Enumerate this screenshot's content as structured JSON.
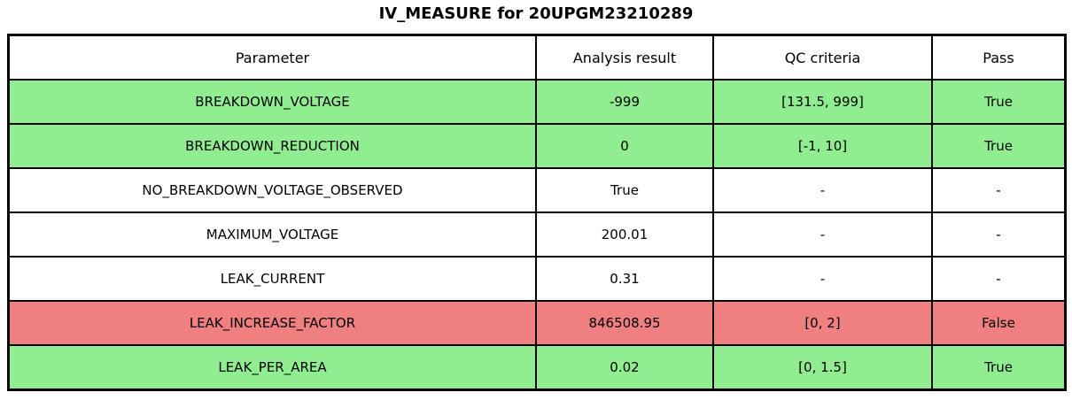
{
  "colors": {
    "pass": "#90ee90",
    "fail": "#f08080",
    "neutral": "#ffffff",
    "border": "#000000",
    "text": "#000000"
  },
  "chart_data": {
    "type": "table",
    "title": "IV_MEASURE for 20UPGM23210289",
    "columns": [
      "Parameter",
      "Analysis result",
      "QC criteria",
      "Pass"
    ],
    "rows": [
      [
        "BREAKDOWN_VOLTAGE",
        "-999",
        "[131.5, 999]",
        "True"
      ],
      [
        "BREAKDOWN_REDUCTION",
        "0",
        "[-1, 10]",
        "True"
      ],
      [
        "NO_BREAKDOWN_VOLTAGE_OBSERVED",
        "True",
        "-",
        "-"
      ],
      [
        "MAXIMUM_VOLTAGE",
        "200.01",
        "-",
        "-"
      ],
      [
        "LEAK_CURRENT",
        "0.31",
        "-",
        "-"
      ],
      [
        "LEAK_INCREASE_FACTOR",
        "846508.95",
        "[0, 2]",
        "False"
      ],
      [
        "LEAK_PER_AREA",
        "0.02",
        "[0, 1.5]",
        "True"
      ]
    ],
    "row_status": [
      "pass",
      "pass",
      "neutral",
      "neutral",
      "neutral",
      "fail",
      "pass"
    ],
    "legend_position": "none",
    "grid": true
  }
}
